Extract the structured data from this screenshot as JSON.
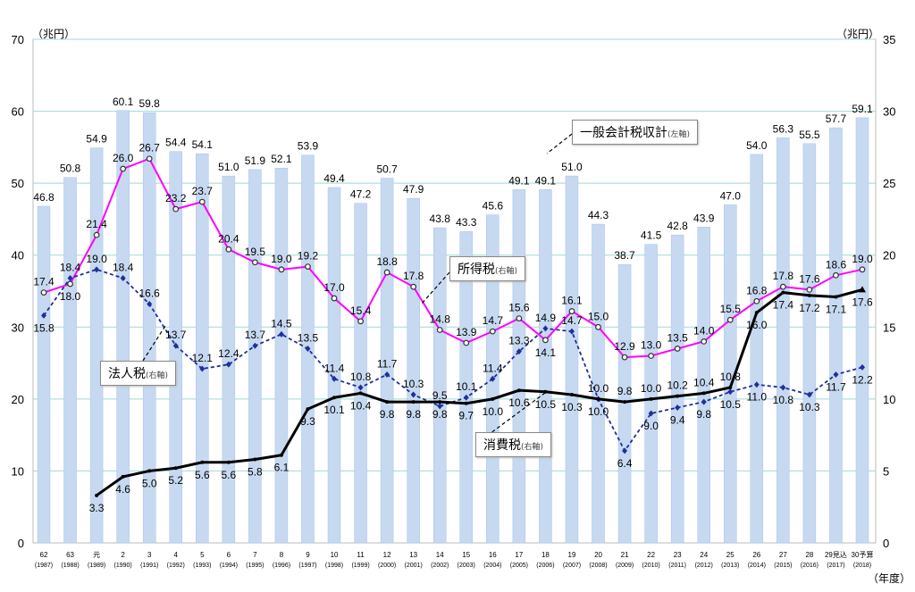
{
  "chart_data": {
    "type": "bar+line",
    "left_axis_unit": "（兆円）",
    "right_axis_unit": "（兆円）",
    "xlabel": "（年度）",
    "left_ylim": [
      0,
      70
    ],
    "right_ylim": [
      0,
      35
    ],
    "left_ticks": [
      0,
      10,
      20,
      30,
      40,
      50,
      60,
      70
    ],
    "right_ticks": [
      0,
      5,
      10,
      15,
      20,
      25,
      30,
      35
    ],
    "grid": true,
    "categories": [
      "62",
      "63",
      "元",
      "2",
      "3",
      "4",
      "5",
      "6",
      "7",
      "8",
      "9",
      "10",
      "11",
      "12",
      "13",
      "14",
      "15",
      "16",
      "17",
      "18",
      "19",
      "20",
      "21",
      "22",
      "23",
      "24",
      "25",
      "26",
      "27",
      "28",
      "29見込",
      "30予算"
    ],
    "category_years": [
      "(1987)",
      "(1988)",
      "(1989)",
      "(1990)",
      "(1991)",
      "(1992)",
      "(1993)",
      "(1994)",
      "(1995)",
      "(1996)",
      "(1997)",
      "(1998)",
      "(1999)",
      "(2000)",
      "(2001)",
      "(2002)",
      "(2003)",
      "(2004)",
      "(2005)",
      "(2006)",
      "(2007)",
      "(2008)",
      "(2009)",
      "(2010)",
      "(2011)",
      "(2012)",
      "(2013)",
      "(2014)",
      "(2015)",
      "(2016)",
      "(2017)",
      "(2018)"
    ],
    "series": [
      {
        "name": "一般会計税収計",
        "axis_note": "(左軸)",
        "type": "bar",
        "color": "#c6d9f1",
        "values": [
          46.8,
          50.8,
          54.9,
          60.1,
          59.8,
          54.4,
          54.1,
          51.0,
          51.9,
          52.1,
          53.9,
          49.4,
          47.2,
          50.7,
          47.9,
          43.8,
          43.3,
          45.6,
          49.1,
          49.1,
          51.0,
          44.3,
          38.7,
          41.5,
          42.8,
          43.9,
          47.0,
          54.0,
          56.3,
          55.5,
          57.7,
          59.1
        ]
      },
      {
        "name": "所得税",
        "axis_note": "(右軸)",
        "type": "line",
        "color": "#ff00ff",
        "values": [
          17.4,
          18.0,
          21.4,
          26.0,
          26.7,
          23.2,
          23.7,
          20.4,
          19.5,
          19.0,
          19.2,
          17.0,
          15.4,
          18.8,
          17.8,
          14.8,
          13.9,
          14.7,
          15.6,
          14.1,
          16.1,
          15.0,
          12.9,
          13.0,
          13.5,
          14.0,
          15.5,
          16.8,
          17.8,
          17.6,
          18.6,
          19.0
        ]
      },
      {
        "name": "法人税",
        "axis_note": "(右軸)",
        "type": "line-dashed",
        "color": "#1f2f9a",
        "values": [
          15.8,
          18.4,
          19.0,
          18.4,
          16.6,
          13.7,
          12.1,
          12.4,
          13.7,
          14.5,
          13.5,
          11.4,
          10.8,
          11.7,
          10.3,
          9.5,
          10.1,
          11.4,
          13.3,
          14.9,
          14.7,
          10.0,
          6.4,
          9.0,
          9.4,
          9.8,
          10.5,
          11.0,
          10.8,
          10.3,
          11.7,
          12.2
        ]
      },
      {
        "name": "消費税",
        "axis_note": "(右軸)",
        "type": "line",
        "color": "#000000",
        "values": [
          null,
          null,
          3.3,
          4.6,
          5.0,
          5.2,
          5.6,
          5.6,
          5.8,
          6.1,
          9.3,
          10.1,
          10.4,
          9.8,
          9.8,
          9.8,
          9.7,
          10.0,
          10.6,
          10.5,
          10.3,
          10.0,
          9.8,
          10.0,
          10.2,
          10.4,
          10.8,
          16.0,
          17.4,
          17.2,
          17.1,
          17.6
        ]
      }
    ]
  }
}
